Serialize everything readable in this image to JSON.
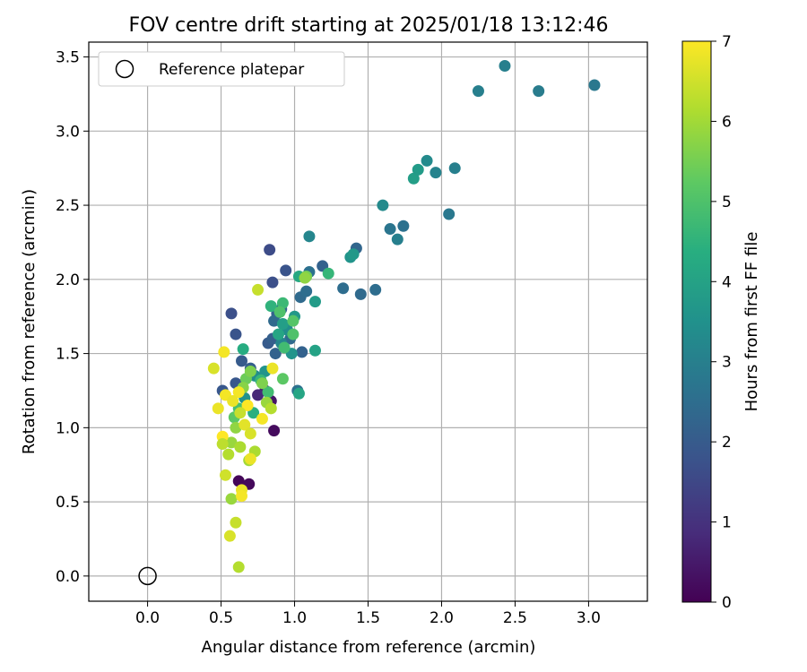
{
  "chart_data": {
    "type": "scatter",
    "title": "FOV centre drift starting at 2025/01/18 13:12:46",
    "xlabel": "Angular distance from reference (arcmin)",
    "ylabel": "Rotation from reference (arcmin)",
    "xlim": [
      -0.4,
      3.4
    ],
    "ylim": [
      -0.17,
      3.6
    ],
    "xticks": [
      "0.0",
      "0.5",
      "1.0",
      "1.5",
      "2.0",
      "2.5",
      "3.0"
    ],
    "xtick_values": [
      0,
      0.5,
      1.0,
      1.5,
      2.0,
      2.5,
      3.0
    ],
    "yticks": [
      "0.0",
      "0.5",
      "1.0",
      "1.5",
      "2.0",
      "2.5",
      "3.0",
      "3.5"
    ],
    "ytick_values": [
      0,
      0.5,
      1.0,
      1.5,
      2.0,
      2.5,
      3.0,
      3.5
    ],
    "grid": true,
    "legend": {
      "label": "Reference platepar",
      "position": "top-left"
    },
    "reference": {
      "x": 0.0,
      "y": 0.0
    },
    "colorbar": {
      "label": "Hours from first FF file",
      "colormap": "viridis",
      "range": [
        0,
        7
      ],
      "ticks": [
        "0",
        "1",
        "2",
        "3",
        "4",
        "5",
        "6",
        "7"
      ],
      "tick_values": [
        0,
        1,
        2,
        3,
        4,
        5,
        6,
        7
      ]
    },
    "points": [
      {
        "x": 0.62,
        "y": 0.64,
        "t": 0.1
      },
      {
        "x": 0.69,
        "y": 0.62,
        "t": 0.15
      },
      {
        "x": 0.86,
        "y": 0.98,
        "t": 0.2
      },
      {
        "x": 0.84,
        "y": 1.18,
        "t": 0.4
      },
      {
        "x": 0.8,
        "y": 1.25,
        "t": 0.6
      },
      {
        "x": 0.75,
        "y": 1.22,
        "t": 0.8
      },
      {
        "x": 0.83,
        "y": 2.2,
        "t": 1.6
      },
      {
        "x": 0.85,
        "y": 1.98,
        "t": 1.7
      },
      {
        "x": 0.94,
        "y": 2.06,
        "t": 1.8
      },
      {
        "x": 0.57,
        "y": 1.77,
        "t": 1.7
      },
      {
        "x": 0.6,
        "y": 1.63,
        "t": 1.8
      },
      {
        "x": 0.51,
        "y": 1.25,
        "t": 1.9
      },
      {
        "x": 0.6,
        "y": 1.3,
        "t": 1.9
      },
      {
        "x": 0.64,
        "y": 1.45,
        "t": 2.0
      },
      {
        "x": 0.7,
        "y": 1.4,
        "t": 2.1
      },
      {
        "x": 0.82,
        "y": 1.57,
        "t": 2.0
      },
      {
        "x": 0.85,
        "y": 1.6,
        "t": 2.1
      },
      {
        "x": 0.87,
        "y": 1.5,
        "t": 2.2
      },
      {
        "x": 0.88,
        "y": 1.77,
        "t": 2.2
      },
      {
        "x": 0.91,
        "y": 1.8,
        "t": 2.3
      },
      {
        "x": 0.86,
        "y": 1.72,
        "t": 2.4
      },
      {
        "x": 0.97,
        "y": 1.6,
        "t": 2.4
      },
      {
        "x": 1.05,
        "y": 1.51,
        "t": 2.2
      },
      {
        "x": 1.02,
        "y": 1.25,
        "t": 2.6
      },
      {
        "x": 1.04,
        "y": 1.88,
        "t": 2.4
      },
      {
        "x": 1.08,
        "y": 1.92,
        "t": 2.5
      },
      {
        "x": 1.1,
        "y": 2.05,
        "t": 2.6
      },
      {
        "x": 1.19,
        "y": 2.09,
        "t": 2.2
      },
      {
        "x": 1.42,
        "y": 2.21,
        "t": 2.3
      },
      {
        "x": 1.33,
        "y": 1.94,
        "t": 2.5
      },
      {
        "x": 1.45,
        "y": 1.9,
        "t": 2.4
      },
      {
        "x": 1.55,
        "y": 1.93,
        "t": 2.5
      },
      {
        "x": 1.65,
        "y": 2.34,
        "t": 2.7
      },
      {
        "x": 1.74,
        "y": 2.36,
        "t": 2.6
      },
      {
        "x": 1.7,
        "y": 2.27,
        "t": 3.0
      },
      {
        "x": 1.6,
        "y": 2.5,
        "t": 3.3
      },
      {
        "x": 1.1,
        "y": 2.29,
        "t": 3.2
      },
      {
        "x": 1.38,
        "y": 2.15,
        "t": 3.6
      },
      {
        "x": 1.4,
        "y": 2.17,
        "t": 3.7
      },
      {
        "x": 1.81,
        "y": 2.68,
        "t": 3.9
      },
      {
        "x": 1.84,
        "y": 2.74,
        "t": 3.8
      },
      {
        "x": 1.9,
        "y": 2.8,
        "t": 3.3
      },
      {
        "x": 1.96,
        "y": 2.72,
        "t": 3.1
      },
      {
        "x": 2.09,
        "y": 2.75,
        "t": 3.0
      },
      {
        "x": 2.05,
        "y": 2.44,
        "t": 2.8
      },
      {
        "x": 2.25,
        "y": 3.27,
        "t": 3.0
      },
      {
        "x": 2.43,
        "y": 3.44,
        "t": 3.0
      },
      {
        "x": 2.66,
        "y": 3.27,
        "t": 2.9
      },
      {
        "x": 3.04,
        "y": 3.31,
        "t": 2.8
      },
      {
        "x": 0.91,
        "y": 1.57,
        "t": 3.2
      },
      {
        "x": 0.95,
        "y": 1.66,
        "t": 3.4
      },
      {
        "x": 0.98,
        "y": 1.5,
        "t": 3.6
      },
      {
        "x": 1.03,
        "y": 1.23,
        "t": 4.1
      },
      {
        "x": 1.0,
        "y": 1.75,
        "t": 3.7
      },
      {
        "x": 0.92,
        "y": 1.7,
        "t": 3.9
      },
      {
        "x": 1.14,
        "y": 1.85,
        "t": 3.8
      },
      {
        "x": 1.14,
        "y": 1.52,
        "t": 4.0
      },
      {
        "x": 1.03,
        "y": 2.02,
        "t": 4.2
      },
      {
        "x": 1.23,
        "y": 2.04,
        "t": 4.6
      },
      {
        "x": 0.89,
        "y": 1.63,
        "t": 4.1
      },
      {
        "x": 0.8,
        "y": 1.38,
        "t": 3.6
      },
      {
        "x": 0.73,
        "y": 1.35,
        "t": 3.4
      },
      {
        "x": 0.66,
        "y": 1.2,
        "t": 3.5
      },
      {
        "x": 0.65,
        "y": 1.53,
        "t": 4.3
      },
      {
        "x": 0.84,
        "y": 1.82,
        "t": 4.5
      },
      {
        "x": 0.92,
        "y": 1.84,
        "t": 4.7
      },
      {
        "x": 0.9,
        "y": 1.78,
        "t": 5.0
      },
      {
        "x": 0.99,
        "y": 1.72,
        "t": 5.1
      },
      {
        "x": 0.93,
        "y": 1.54,
        "t": 4.8
      },
      {
        "x": 0.99,
        "y": 1.63,
        "t": 5.0
      },
      {
        "x": 0.77,
        "y": 1.32,
        "t": 4.6
      },
      {
        "x": 0.82,
        "y": 1.24,
        "t": 4.8
      },
      {
        "x": 0.72,
        "y": 1.1,
        "t": 4.4
      },
      {
        "x": 0.62,
        "y": 1.13,
        "t": 4.9
      },
      {
        "x": 0.59,
        "y": 1.07,
        "t": 5.2
      },
      {
        "x": 0.92,
        "y": 1.33,
        "t": 5.2
      },
      {
        "x": 1.08,
        "y": 2.02,
        "t": 5.5
      },
      {
        "x": 1.07,
        "y": 2.01,
        "t": 5.8
      },
      {
        "x": 0.75,
        "y": 1.93,
        "t": 6.4
      },
      {
        "x": 0.67,
        "y": 1.33,
        "t": 5.4
      },
      {
        "x": 0.7,
        "y": 1.38,
        "t": 5.6
      },
      {
        "x": 0.65,
        "y": 1.27,
        "t": 5.7
      },
      {
        "x": 0.78,
        "y": 1.3,
        "t": 5.6
      },
      {
        "x": 0.81,
        "y": 1.17,
        "t": 5.9
      },
      {
        "x": 0.6,
        "y": 1.0,
        "t": 5.8
      },
      {
        "x": 0.57,
        "y": 0.9,
        "t": 5.9
      },
      {
        "x": 0.63,
        "y": 0.87,
        "t": 6.1
      },
      {
        "x": 0.69,
        "y": 0.78,
        "t": 6.0
      },
      {
        "x": 0.55,
        "y": 0.82,
        "t": 6.2
      },
      {
        "x": 0.73,
        "y": 0.84,
        "t": 6.1
      },
      {
        "x": 0.84,
        "y": 1.13,
        "t": 6.2
      },
      {
        "x": 0.57,
        "y": 0.52,
        "t": 5.9
      },
      {
        "x": 0.85,
        "y": 1.4,
        "t": 6.8
      },
      {
        "x": 0.45,
        "y": 1.4,
        "t": 6.6
      },
      {
        "x": 0.52,
        "y": 1.51,
        "t": 6.9
      },
      {
        "x": 0.48,
        "y": 1.13,
        "t": 6.8
      },
      {
        "x": 0.53,
        "y": 1.22,
        "t": 6.9
      },
      {
        "x": 0.62,
        "y": 1.24,
        "t": 6.9
      },
      {
        "x": 0.66,
        "y": 1.02,
        "t": 6.7
      },
      {
        "x": 0.51,
        "y": 0.94,
        "t": 7.0
      },
      {
        "x": 0.53,
        "y": 0.68,
        "t": 6.5
      },
      {
        "x": 0.64,
        "y": 0.58,
        "t": 6.8
      },
      {
        "x": 0.64,
        "y": 0.54,
        "t": 6.9
      },
      {
        "x": 0.6,
        "y": 0.36,
        "t": 6.4
      },
      {
        "x": 0.56,
        "y": 0.27,
        "t": 6.6
      },
      {
        "x": 0.62,
        "y": 0.06,
        "t": 6.2
      },
      {
        "x": 0.7,
        "y": 0.96,
        "t": 6.6
      },
      {
        "x": 0.7,
        "y": 0.79,
        "t": 6.8
      },
      {
        "x": 0.78,
        "y": 1.06,
        "t": 6.9
      },
      {
        "x": 0.68,
        "y": 1.15,
        "t": 7.0
      },
      {
        "x": 0.58,
        "y": 1.18,
        "t": 6.8
      },
      {
        "x": 0.51,
        "y": 0.89,
        "t": 6.3
      },
      {
        "x": 0.63,
        "y": 1.1,
        "t": 6.4
      }
    ]
  }
}
